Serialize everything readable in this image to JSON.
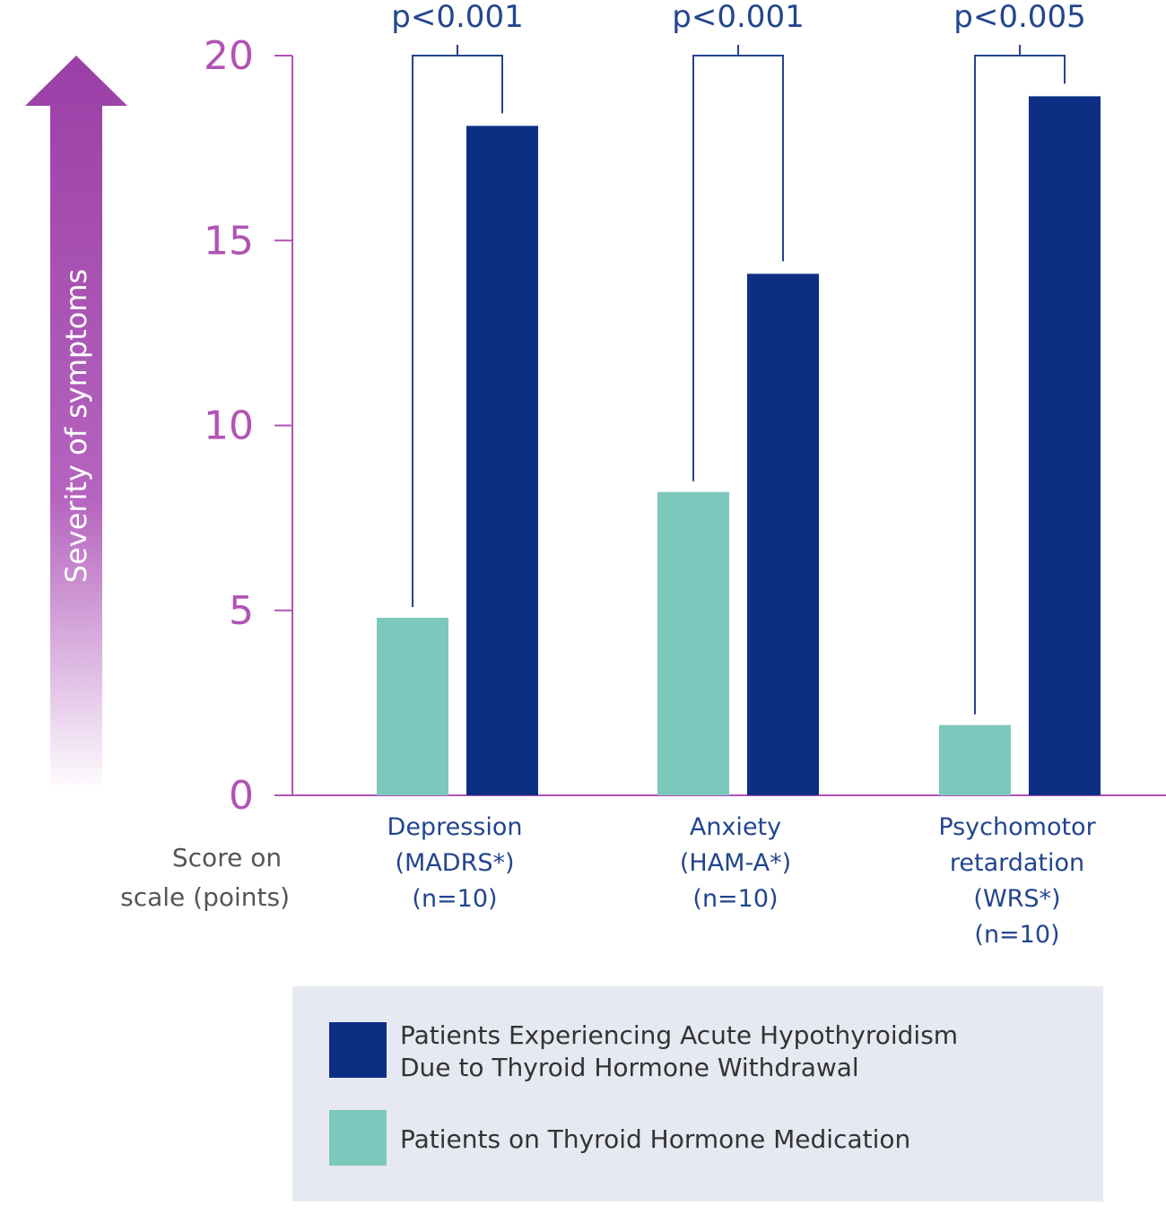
{
  "chart_data": {
    "type": "bar",
    "categories": [
      {
        "lines": [
          "Depression",
          "(MADRS*)",
          "(n=10)"
        ]
      },
      {
        "lines": [
          "Anxiety",
          "(HAM-A*)",
          "(n=10)"
        ]
      },
      {
        "lines": [
          "Psychomotor",
          "retardation",
          "(WRS*)",
          "(n=10)"
        ]
      }
    ],
    "series": [
      {
        "name": "Patients on Thyroid Hormone Medication",
        "color": "#7dc8bd",
        "values": [
          4.8,
          8.2,
          1.9
        ]
      },
      {
        "name_lines": [
          "Patients Experiencing Acute Hypothyroidism",
          "Due to Thyroid Hormone Withdrawal"
        ],
        "color": "#0c2f83",
        "values": [
          18.1,
          14.1,
          18.9
        ]
      }
    ],
    "p_values": [
      "p<0.001",
      "p<0.001",
      "p<0.005"
    ],
    "yticks": [
      0,
      5,
      10,
      15,
      20
    ],
    "ylim": [
      0,
      20
    ],
    "ylabel": "Severity of symptoms",
    "axis_note_lines": [
      "Score on",
      "scale (points)"
    ],
    "legend_order": [
      1,
      0
    ],
    "legend_placement": "bottom",
    "colors": {
      "axis": "#b153b4",
      "arrow": "#9a3fa6",
      "bracket": "#23458e",
      "legend_bg": "#e6e9f1"
    }
  }
}
